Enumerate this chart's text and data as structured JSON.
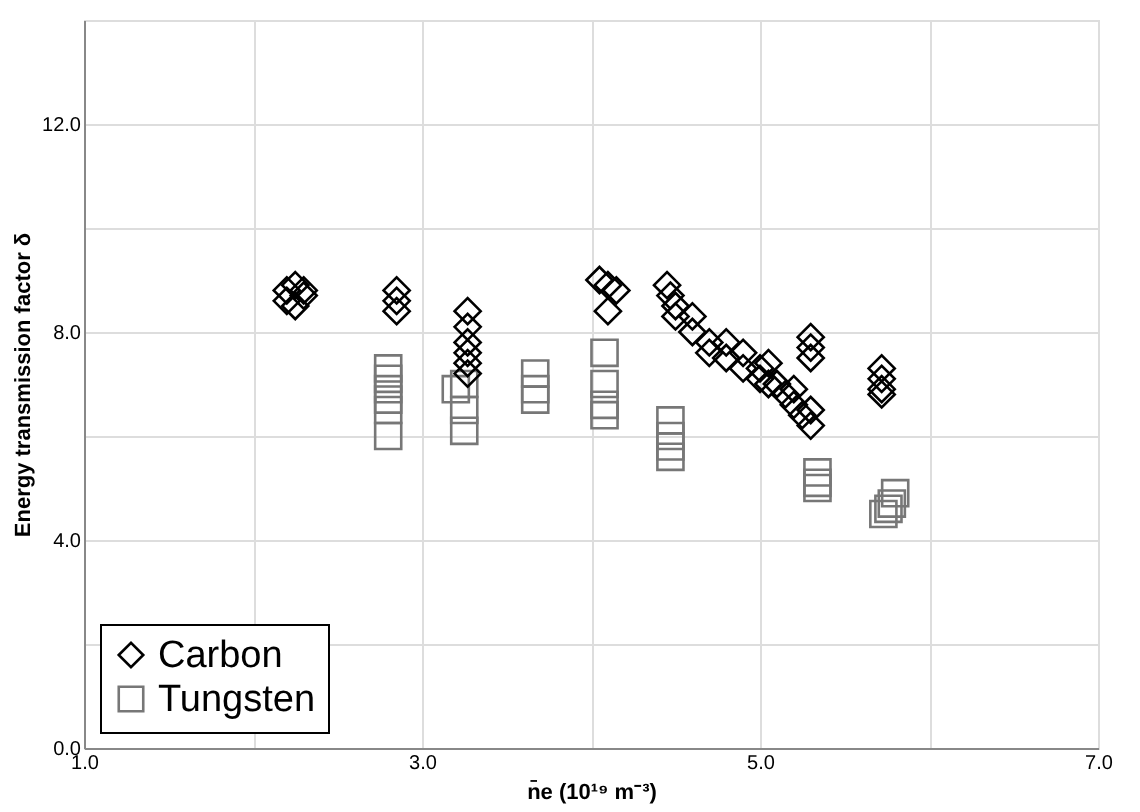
{
  "chart_data": {
    "type": "scatter",
    "xlabel": "n̄e (10¹⁹ m⁻³)",
    "ylabel": "Energy transmission factor  δ",
    "xlim": [
      1,
      7
    ],
    "ylim": [
      0,
      14
    ],
    "xticks": [
      {
        "value": 1,
        "label": "1.0"
      },
      {
        "value": 2,
        "label": null
      },
      {
        "value": 3,
        "label": "3.0"
      },
      {
        "value": 4,
        "label": null
      },
      {
        "value": 5,
        "label": "5.0"
      },
      {
        "value": 6,
        "label": null
      },
      {
        "value": 7,
        "label": "7.0"
      }
    ],
    "yticks": [
      {
        "value": 0,
        "label": "0.0"
      },
      {
        "value": 2,
        "label": null
      },
      {
        "value": 4,
        "label": "4.0"
      },
      {
        "value": 6,
        "label": null
      },
      {
        "value": 8,
        "label": "8.0"
      },
      {
        "value": 10,
        "label": null
      },
      {
        "value": 12,
        "label": "12.0"
      },
      {
        "value": 14,
        "label": null
      }
    ],
    "grid": true,
    "legend": "bottom left",
    "series": [
      {
        "name": "Carbon",
        "color": "#000000",
        "marker": "diamond",
        "x": [
          2.2,
          2.25,
          2.3,
          2.25,
          2.2,
          2.3,
          2.85,
          2.85,
          2.85,
          3.27,
          3.27,
          3.27,
          3.27,
          3.27,
          3.27,
          4.05,
          4.1,
          4.15,
          4.1,
          4.45,
          4.47,
          4.5,
          4.5,
          4.6,
          4.6,
          4.7,
          4.7,
          4.8,
          4.8,
          4.9,
          4.9,
          5.0,
          5.0,
          5.05,
          5.05,
          5.1,
          5.15,
          5.2,
          5.2,
          5.25,
          5.3,
          5.3,
          5.3,
          5.3,
          5.3,
          5.72,
          5.72,
          5.72,
          5.72
        ],
        "values": [
          8.8,
          8.9,
          8.7,
          8.5,
          8.6,
          8.8,
          8.8,
          8.6,
          8.4,
          8.4,
          8.1,
          7.8,
          7.6,
          7.4,
          7.2,
          9.0,
          8.9,
          8.8,
          8.4,
          8.9,
          8.7,
          8.5,
          8.3,
          8.0,
          8.3,
          7.8,
          7.6,
          7.5,
          7.8,
          7.3,
          7.6,
          7.1,
          7.3,
          7.4,
          7.0,
          7.0,
          6.8,
          6.6,
          6.9,
          6.4,
          6.2,
          6.5,
          7.9,
          7.7,
          7.5,
          7.3,
          7.1,
          6.9,
          6.8
        ]
      },
      {
        "name": "Tungsten",
        "color": "#777777",
        "marker": "square",
        "x": [
          2.8,
          2.8,
          2.8,
          2.8,
          2.8,
          2.8,
          3.25,
          3.25,
          3.25,
          3.2,
          3.67,
          3.67,
          3.67,
          4.08,
          4.08,
          4.08,
          4.08,
          4.47,
          4.47,
          4.47,
          4.47,
          5.34,
          5.34,
          5.34,
          5.73,
          5.76,
          5.78,
          5.8
        ],
        "values": [
          7.3,
          7.1,
          6.9,
          6.7,
          6.5,
          6.0,
          7.0,
          6.5,
          6.1,
          6.9,
          7.2,
          6.9,
          6.7,
          7.6,
          7.0,
          6.6,
          6.4,
          6.3,
          6.0,
          5.8,
          5.6,
          5.3,
          5.1,
          5.0,
          4.5,
          4.6,
          4.7,
          4.9
        ]
      }
    ]
  }
}
